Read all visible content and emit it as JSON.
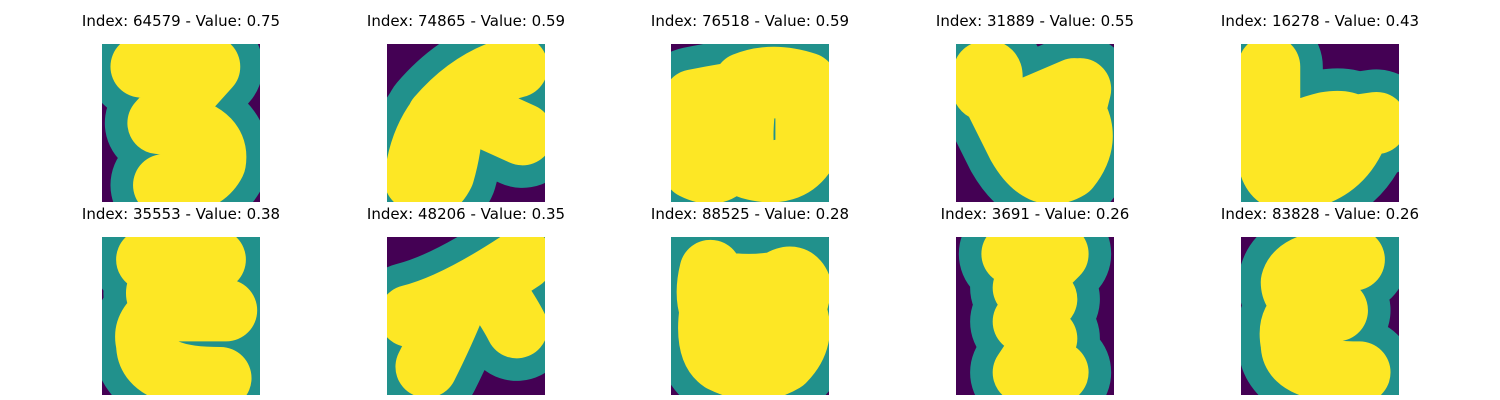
{
  "figure": {
    "colormap": "viridis",
    "colors": {
      "background": "#440154",
      "edge": "#21918c",
      "stroke": "#fde725"
    },
    "panels": [
      {
        "title": "Index: 64579 - Value: 0.75",
        "glyph": "digit-3-glyph"
      },
      {
        "title": "Index: 74865 - Value: 0.59",
        "glyph": "stroke-glyph"
      },
      {
        "title": "Index: 76518 - Value: 0.59",
        "glyph": "double-loop-glyph"
      },
      {
        "title": "Index: 31889 - Value: 0.55",
        "glyph": "hooked-loop-glyph"
      },
      {
        "title": "Index: 16278 - Value: 0.43",
        "glyph": "b-like-glyph"
      },
      {
        "title": "Index: 35553 - Value: 0.38",
        "glyph": "epsilon-glyph"
      },
      {
        "title": "Index: 48206 - Value: 0.35",
        "glyph": "cross-stroke-glyph"
      },
      {
        "title": "Index: 88525 - Value: 0.28",
        "glyph": "open-loop-glyph"
      },
      {
        "title": "Index: 3691 - Value: 0.26",
        "glyph": "zigzag-glyph"
      },
      {
        "title": "Index: 83828 - Value: 0.26",
        "glyph": "reversed-3-glyph"
      }
    ]
  }
}
